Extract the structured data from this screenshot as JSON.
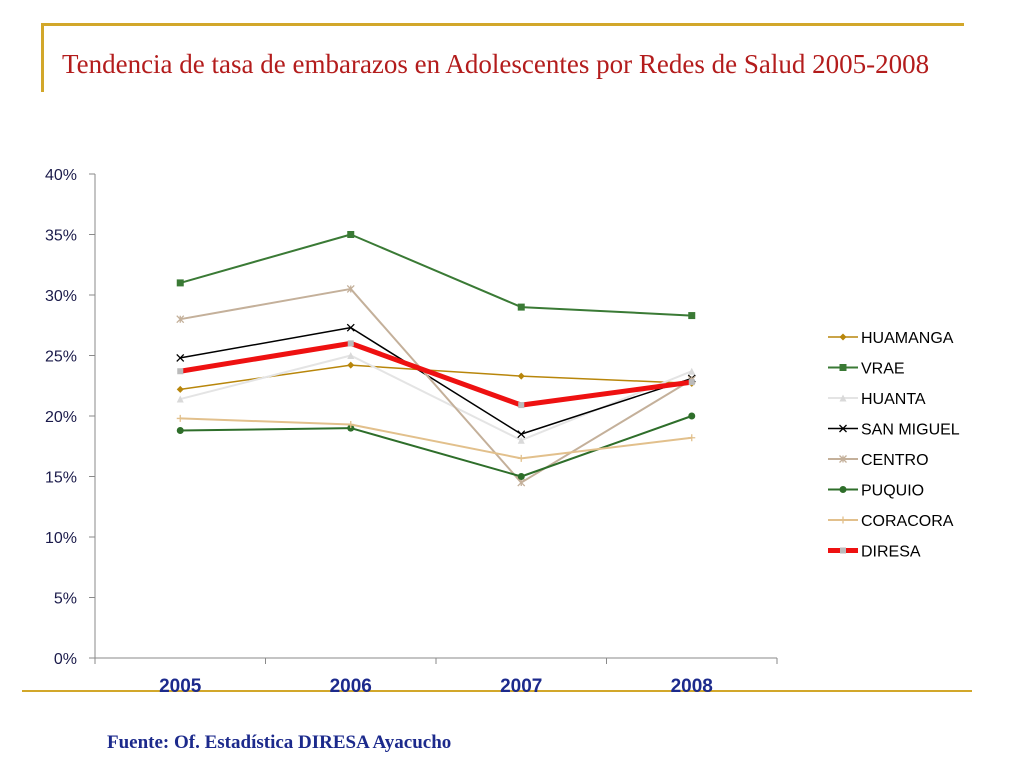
{
  "slide": {
    "title": "Tendencia de tasa de embarazos en Adolescentes por Redes de Salud  2005-2008",
    "source": "Fuente: Of. Estadística DIRESA Ayacucho",
    "accent_color": "#d2a72a",
    "title_color": "#b31c1c"
  },
  "chart_data": {
    "type": "line",
    "title": "",
    "xlabel": "",
    "ylabel": "",
    "categories": [
      "2005",
      "2006",
      "2007",
      "2008"
    ],
    "ylim": [
      0,
      40
    ],
    "yticks": [
      0,
      5,
      10,
      15,
      20,
      25,
      30,
      35,
      40
    ],
    "ytick_labels": [
      "0%",
      "5%",
      "10%",
      "15%",
      "20%",
      "25%",
      "30%",
      "35%",
      "40%"
    ],
    "grid": false,
    "legend_position": "right",
    "series": [
      {
        "name": "HUAMANGA",
        "values": [
          22.2,
          24.2,
          23.3,
          22.7
        ],
        "color": "#b8860b",
        "marker": "diamond",
        "width": 1.5
      },
      {
        "name": "VRAE",
        "values": [
          31.0,
          35.0,
          29.0,
          28.3
        ],
        "color": "#3a7a35",
        "marker": "square",
        "width": 2
      },
      {
        "name": "HUANTA",
        "values": [
          21.4,
          25.0,
          18.0,
          23.7
        ],
        "color": "#e4e4e4",
        "marker": "triangle",
        "width": 2
      },
      {
        "name": "SAN MIGUEL",
        "values": [
          24.8,
          27.3,
          18.5,
          23.1
        ],
        "color": "#000000",
        "marker": "x",
        "width": 1.5
      },
      {
        "name": "CENTRO",
        "values": [
          28.0,
          30.5,
          14.5,
          23.0
        ],
        "color": "#c4b09a",
        "marker": "star",
        "width": 2
      },
      {
        "name": "PUQUIO",
        "values": [
          18.8,
          19.0,
          15.0,
          20.0
        ],
        "color": "#2e6e2a",
        "marker": "circle",
        "width": 2
      },
      {
        "name": "CORACORA",
        "values": [
          19.8,
          19.3,
          16.5,
          18.2
        ],
        "color": "#e2c08c",
        "marker": "plus",
        "width": 2
      },
      {
        "name": "DIRESA",
        "values": [
          23.7,
          26.0,
          20.9,
          22.8
        ],
        "color": "#ee1111",
        "marker": "square",
        "width": 5
      }
    ]
  }
}
